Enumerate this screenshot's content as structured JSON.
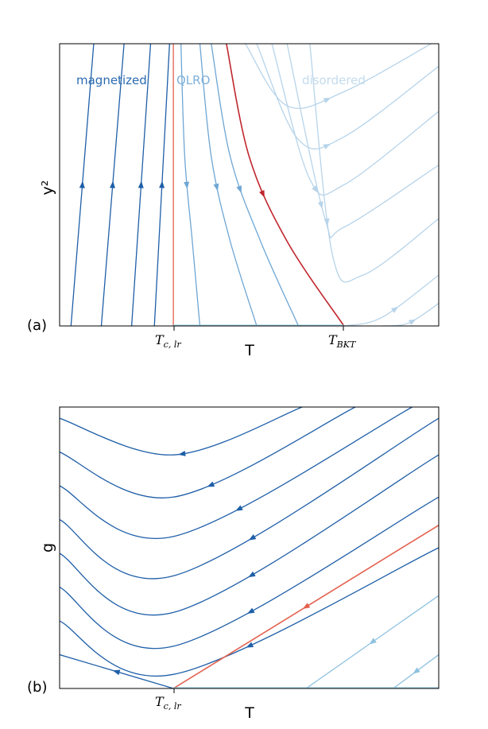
{
  "chart_data": [
    {
      "type": "line",
      "panel_label": "(a)",
      "xlabel": "T",
      "ylabel": "y²",
      "x_ticks": [
        {
          "main": "T",
          "sub": "c, lr"
        },
        {
          "main": "T",
          "sub": "BKT"
        }
      ],
      "region_labels": [
        {
          "text": "magnetized",
          "color": "#2a6bb0"
        },
        {
          "text": "QLRO",
          "color": "#7fb0d8"
        },
        {
          "text": "disordered",
          "color": "#c3dcee"
        }
      ],
      "colors": {
        "magnetized": "#1f5fa8",
        "qlro": "#6ea6d4",
        "disordered": "#b7d4ea",
        "separatrix": "#c0262d",
        "boundary": "#e3614f",
        "fixed_line": "#8ec8e0"
      },
      "series": [
        {
          "group": "magnetized",
          "flow": "up",
          "x": [
            0.03,
            0.09
          ],
          "y": [
            0,
            1
          ]
        },
        {
          "group": "magnetized",
          "flow": "up",
          "x": [
            0.11,
            0.17
          ],
          "y": [
            0,
            1
          ]
        },
        {
          "group": "magnetized",
          "flow": "up",
          "x": [
            0.19,
            0.24
          ],
          "y": [
            0,
            1
          ]
        },
        {
          "group": "magnetized",
          "flow": "up",
          "x": [
            0.25,
            0.29
          ],
          "y": [
            0,
            1
          ]
        },
        {
          "group": "boundary",
          "flow": "none",
          "x": [
            0.3,
            0.3
          ],
          "y": [
            0,
            1
          ]
        },
        {
          "group": "qlro",
          "flow": "down",
          "x": [
            0.32,
            0.33,
            0.35,
            0.37
          ],
          "y": [
            1,
            0.6,
            0.3,
            0
          ]
        },
        {
          "group": "qlro",
          "flow": "down",
          "x": [
            0.37,
            0.4,
            0.45,
            0.52
          ],
          "y": [
            1,
            0.6,
            0.3,
            0
          ]
        },
        {
          "group": "qlro",
          "flow": "down",
          "x": [
            0.4,
            0.45,
            0.53,
            0.63
          ],
          "y": [
            1,
            0.6,
            0.3,
            0
          ]
        },
        {
          "group": "separatrix",
          "flow": "down",
          "x": [
            0.44,
            0.5,
            0.6,
            0.75
          ],
          "y": [
            1,
            0.6,
            0.3,
            0
          ]
        },
        {
          "group": "disordered",
          "flow": "right",
          "x": [
            0.49,
            0.6,
            0.75,
            0.98
          ],
          "y": [
            1,
            0.78,
            0.83,
            1
          ]
        },
        {
          "group": "disordered",
          "flow": "right",
          "x": [
            0.52,
            0.63,
            0.75,
            1.0
          ],
          "y": [
            1,
            0.66,
            0.67,
            0.92
          ]
        },
        {
          "group": "disordered",
          "flow": "right",
          "x": [
            0.56,
            0.66,
            0.75,
            1.0
          ],
          "y": [
            1,
            0.52,
            0.5,
            0.76
          ]
        },
        {
          "group": "disordered",
          "flow": "right",
          "x": [
            0.6,
            0.7,
            0.75,
            1.0
          ],
          "y": [
            1,
            0.38,
            0.35,
            0.57
          ]
        },
        {
          "group": "disordered",
          "flow": "right",
          "x": [
            0.66,
            0.72,
            0.8,
            1.0
          ],
          "y": [
            1,
            0.25,
            0.18,
            0.38
          ]
        },
        {
          "group": "disordered",
          "flow": "right",
          "x": [
            0.75,
            0.85,
            1.0
          ],
          "y": [
            0,
            0.03,
            0.18
          ]
        },
        {
          "group": "disordered",
          "flow": "right",
          "x": [
            0.85,
            0.92,
            1.0
          ],
          "y": [
            0,
            0.01,
            0.08
          ]
        },
        {
          "group": "fixed_line",
          "flow": "none",
          "x": [
            0.3,
            0.75
          ],
          "y": [
            0,
            0
          ]
        }
      ]
    },
    {
      "type": "line",
      "panel_label": "(b)",
      "xlabel": "T",
      "ylabel": "g",
      "x_ticks": [
        {
          "main": "T",
          "sub": "c, lr"
        }
      ],
      "colors": {
        "magnetized": "#1f5fa8",
        "disordered": "#8ec1e0",
        "separatrix": "#e3614f",
        "fixed_line": "#8ec8e0"
      },
      "series": [
        {
          "group": "magnetized",
          "flow": "left",
          "x": [
            0.0,
            0.3,
            0.64
          ],
          "y": [
            0.96,
            0.83,
            1
          ]
        },
        {
          "group": "magnetized",
          "flow": "left",
          "x": [
            0.0,
            0.3,
            0.78
          ],
          "y": [
            0.84,
            0.68,
            1
          ]
        },
        {
          "group": "magnetized",
          "flow": "left",
          "x": [
            0.0,
            0.3,
            0.93
          ],
          "y": [
            0.72,
            0.54,
            1
          ]
        },
        {
          "group": "magnetized",
          "flow": "left",
          "x": [
            0.0,
            0.3,
            1.0
          ],
          "y": [
            0.6,
            0.4,
            0.96
          ]
        },
        {
          "group": "magnetized",
          "flow": "left",
          "x": [
            0.0,
            0.3,
            1.0
          ],
          "y": [
            0.48,
            0.27,
            0.83
          ]
        },
        {
          "group": "magnetized",
          "flow": "left",
          "x": [
            0.0,
            0.3,
            1.0
          ],
          "y": [
            0.36,
            0.15,
            0.68
          ]
        },
        {
          "group": "magnetized",
          "flow": "left",
          "x": [
            0.0,
            0.3,
            1.0
          ],
          "y": [
            0.24,
            0.05,
            0.5
          ]
        },
        {
          "group": "magnetized",
          "flow": "left",
          "x": [
            0.0,
            0.3
          ],
          "y": [
            0.12,
            0.0
          ]
        },
        {
          "group": "separatrix",
          "flow": "left",
          "x": [
            0.3,
            1.0
          ],
          "y": [
            0,
            0.58
          ]
        },
        {
          "group": "disordered",
          "flow": "left",
          "x": [
            0.65,
            1.0
          ],
          "y": [
            0,
            0.33
          ]
        },
        {
          "group": "disordered",
          "flow": "left",
          "x": [
            0.88,
            1.0
          ],
          "y": [
            0,
            0.12
          ]
        },
        {
          "group": "fixed_line",
          "flow": "none",
          "x": [
            0.3,
            1.0
          ],
          "y": [
            0,
            0
          ]
        }
      ]
    }
  ]
}
